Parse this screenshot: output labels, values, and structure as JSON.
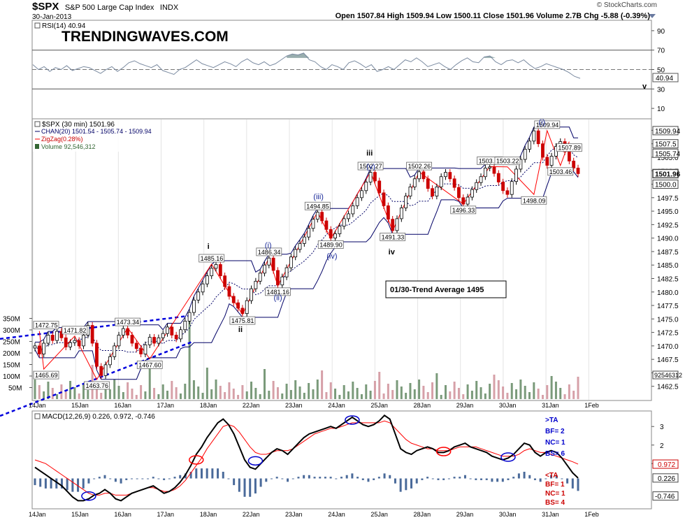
{
  "header": {
    "symbol": "$SPX",
    "name": "S&P 500 Large Cap Index",
    "exchange": "INDX",
    "date": "30-Jan-2013",
    "ohlc": "Open 1507.84  High 1509.94  Low 1500.11  Close 1501.96  Volume 2.7B  Chg -5.88 (-0.39%)",
    "credit": "© StockCharts.com"
  },
  "colors": {
    "up": "#000000",
    "down": "#cc0000",
    "channel": "#000066",
    "zigzag": "#ff0000",
    "volume": "#d6a0a8",
    "volume_up": "#7a9a7a",
    "macd": "#000000",
    "signal": "#ff0000",
    "hist": "#4a6a9a",
    "rsi": "#7a8aa0",
    "trend": "#0000dd"
  },
  "chart_data": [
    {
      "type": "line",
      "title": "RSI(14) 40.94",
      "watermark": "TRENDINGWAVES.COM",
      "ylim": [
        0,
        100
      ],
      "yticks": [
        10,
        30,
        50,
        70,
        90
      ],
      "levels": [
        30,
        50,
        70
      ],
      "last_label": "40.94",
      "corner_label": "v",
      "values": [
        55,
        50,
        53,
        48,
        52,
        50,
        54,
        49,
        51,
        53,
        52,
        49,
        46,
        50,
        53,
        48,
        52,
        57,
        59,
        56,
        54,
        52,
        55,
        49,
        47,
        45,
        50,
        52,
        56,
        60,
        56,
        54,
        52,
        55,
        58,
        56,
        53,
        58,
        61,
        57,
        55,
        58,
        54,
        56,
        60,
        64,
        66,
        65,
        67,
        60,
        58,
        53,
        50,
        55,
        53,
        50,
        57,
        59,
        56,
        52,
        55,
        48,
        50,
        53,
        50,
        55,
        60,
        58,
        62,
        58,
        53,
        55,
        57,
        53,
        50,
        55,
        59,
        62,
        58,
        57,
        63,
        64,
        58,
        55,
        59,
        60,
        57,
        60,
        55,
        51,
        53,
        56,
        54,
        52,
        50,
        47,
        43,
        40.94
      ]
    },
    {
      "type": "line",
      "title": "$SPX (30 min) 1501.96",
      "legend": [
        "CHAN(20) 1501.54 - 1505.74 - 1509.94",
        "ZigZag(0.28%)",
        "Volume 92,546,312"
      ],
      "ylim": [
        1460,
        1512
      ],
      "yticks": [
        1462.5,
        1465.0,
        1467.5,
        1470.0,
        1472.5,
        1475.0,
        1477.5,
        1480.0,
        1482.5,
        1485.0,
        1487.5,
        1490.0,
        1492.5,
        1495.0,
        1497.5,
        1500.0,
        1502.5,
        1505.0,
        1507.5,
        1510.0
      ],
      "x_ticks": [
        "14Jan",
        "15Jan",
        "16Jan",
        "17Jan",
        "18Jan",
        "22Jan",
        "23Jan",
        "24Jan",
        "25Jan",
        "28Jan",
        "29Jan",
        "30Jan",
        "31Jan",
        "1Feb"
      ],
      "volume_ticks": [
        "50M",
        "100M",
        "150M",
        "200M",
        "250M",
        "300M",
        "350M"
      ],
      "price_tags": [
        "1509.94",
        "1507.5",
        "1505.74",
        "1501.96",
        "1500.0"
      ],
      "volume_tag": "92546312",
      "close_path": [
        1470.0,
        1468.5,
        1470.5,
        1472.0,
        1471.0,
        1472.7,
        1471.5,
        1469.8,
        1470.6,
        1471.0,
        1470.0,
        1472.0,
        1473.8,
        1470.5,
        1466.2,
        1464.5,
        1466.5,
        1468.0,
        1470.0,
        1472.0,
        1473.2,
        1472.0,
        1470.5,
        1469.5,
        1468.5,
        1470.2,
        1471.6,
        1470.5,
        1471.5,
        1472.3,
        1473.5,
        1472.0,
        1471.3,
        1473.0,
        1474.6,
        1476.2,
        1478.5,
        1480.0,
        1481.5,
        1483.0,
        1484.4,
        1485.1,
        1483.0,
        1481.0,
        1479.2,
        1478.0,
        1477.0,
        1476.0,
        1478.4,
        1480.6,
        1482.0,
        1483.5,
        1485.0,
        1486.3,
        1484.0,
        1481.3,
        1482.8,
        1484.5,
        1486.5,
        1487.9,
        1489.0,
        1490.2,
        1491.8,
        1493.5,
        1494.8,
        1493.2,
        1491.6,
        1490.0,
        1490.8,
        1492.2,
        1493.6,
        1494.5,
        1496.0,
        1497.5,
        1498.8,
        1500.4,
        1502.2,
        1500.6,
        1498.4,
        1496.0,
        1493.5,
        1491.4,
        1493.6,
        1495.6,
        1497.8,
        1499.5,
        1501.0,
        1502.3,
        1501.0,
        1499.2,
        1497.8,
        1499.5,
        1501.4,
        1502.2,
        1501.0,
        1499.4,
        1497.5,
        1496.3,
        1497.6,
        1499.0,
        1500.3,
        1501.4,
        1503.0,
        1503.2,
        1502.0,
        1500.4,
        1498.8,
        1498.1,
        1500.5,
        1502.8,
        1504.6,
        1506.5,
        1508.0,
        1509.9,
        1507.5,
        1505.0,
        1503.5,
        1505.2,
        1507.0,
        1507.9,
        1506.0,
        1504.3,
        1503.0,
        1501.96
      ],
      "swing_points": [
        {
          "label": "1472.75",
          "value": 1472.75
        },
        {
          "label": "1465.69",
          "value": 1465.69
        },
        {
          "label": "1471.82",
          "value": 1471.82
        },
        {
          "label": "1463.76",
          "value": 1463.76
        },
        {
          "label": "1473.34",
          "value": 1473.34
        },
        {
          "label": "1467.60",
          "value": 1467.6
        },
        {
          "label": "1485.16",
          "value": 1485.16
        },
        {
          "label": "1475.81",
          "value": 1475.81
        },
        {
          "label": "1486.34",
          "value": 1486.34
        },
        {
          "label": "1481.16",
          "value": 1481.16
        },
        {
          "label": "1494.85",
          "value": 1494.85
        },
        {
          "label": "1489.90",
          "value": 1489.9
        },
        {
          "label": "1502.27",
          "value": 1502.27
        },
        {
          "label": "1491.33",
          "value": 1491.33
        },
        {
          "label": "1502.26",
          "value": 1502.26
        },
        {
          "label": "1503.26",
          "value": 1503.26
        },
        {
          "label": "1496.33",
          "value": 1496.33
        },
        {
          "label": "1503.22",
          "value": 1503.22
        },
        {
          "label": "1498.09",
          "value": 1498.09
        },
        {
          "label": "1509.94",
          "value": 1509.94
        },
        {
          "label": "1503.46",
          "value": 1503.46
        },
        {
          "label": "1507.89",
          "value": 1507.89
        }
      ],
      "wave_labels": [
        "i",
        "(i)",
        "(ii)",
        "ii",
        "(iii)",
        "(iv)",
        "iii",
        "(v)",
        "iv",
        "(i)"
      ],
      "annotation": "01/30-Trend Average 1495"
    },
    {
      "type": "line",
      "title": "MACD(12,26,9) 0.226, 0.972, -0.746",
      "ylim": [
        -1.4,
        3.8
      ],
      "yticks": [
        1,
        2,
        3
      ],
      "tags": [
        "0.972",
        "0.226",
        "-0.746"
      ],
      "macd": [
        0.8,
        0.6,
        0.4,
        0.2,
        0.0,
        -0.2,
        -0.5,
        -0.8,
        -1.0,
        -1.0,
        -0.9,
        -0.7,
        -0.6,
        -0.4,
        -0.6,
        -0.9,
        -1.0,
        -0.8,
        -0.6,
        -0.5,
        -0.4,
        -0.3,
        -0.2,
        -0.4,
        -0.6,
        -0.5,
        -0.3,
        0.0,
        0.4,
        0.9,
        1.5,
        1.9,
        2.4,
        2.8,
        3.2,
        3.4,
        3.1,
        2.6,
        1.9,
        1.2,
        0.8,
        0.7,
        1.0,
        1.3,
        1.6,
        1.8,
        1.7,
        1.5,
        1.8,
        2.1,
        2.4,
        2.6,
        2.7,
        2.8,
        2.9,
        3.0,
        2.9,
        3.1,
        3.3,
        3.5,
        3.3,
        3.1,
        3.0,
        3.1,
        3.3,
        3.6,
        3.4,
        2.6,
        1.8,
        1.6,
        1.5,
        1.7,
        1.8,
        1.9,
        1.8,
        1.6,
        1.6,
        1.7,
        1.9,
        2.0,
        2.1,
        1.9,
        1.8,
        1.7,
        1.6,
        1.4,
        1.3,
        1.2,
        1.3,
        1.5,
        1.8,
        2.1,
        2.0,
        1.6,
        1.4,
        1.6,
        1.7,
        1.6,
        1.3,
        0.9,
        0.5,
        0.226
      ],
      "signal": [
        1.2,
        1.1,
        1.0,
        0.8,
        0.6,
        0.4,
        0.2,
        0.0,
        -0.2,
        -0.4,
        -0.6,
        -0.7,
        -0.7,
        -0.6,
        -0.6,
        -0.7,
        -0.7,
        -0.7,
        -0.6,
        -0.5,
        -0.4,
        -0.3,
        -0.3,
        -0.4,
        -0.5,
        -0.5,
        -0.4,
        -0.2,
        0.1,
        0.5,
        0.9,
        1.3,
        1.8,
        2.2,
        2.6,
        3.0,
        3.1,
        3.0,
        2.7,
        2.3,
        1.9,
        1.6,
        1.5,
        1.5,
        1.6,
        1.7,
        1.7,
        1.7,
        1.8,
        2.0,
        2.2,
        2.4,
        2.6,
        2.7,
        2.8,
        2.9,
        2.9,
        3.0,
        3.1,
        3.2,
        3.2,
        3.2,
        3.2,
        3.2,
        3.2,
        3.3,
        3.2,
        2.9,
        2.6,
        2.3,
        2.1,
        2.0,
        1.9,
        1.8,
        1.8,
        1.7,
        1.7,
        1.7,
        1.8,
        1.9,
        1.9,
        1.9,
        1.9,
        1.8,
        1.7,
        1.6,
        1.5,
        1.4,
        1.4,
        1.4,
        1.5,
        1.7,
        1.8,
        1.7,
        1.6,
        1.6,
        1.5,
        1.4,
        1.3,
        1.2,
        1.1,
        0.972
      ],
      "histogram": [
        -0.4,
        -0.5,
        -0.6,
        -0.6,
        -0.6,
        -0.6,
        -0.7,
        -0.8,
        -0.8,
        -0.6,
        -0.3,
        0.0,
        0.1,
        0.2,
        0.0,
        -0.2,
        -0.3,
        -0.1,
        0.0,
        0.0,
        0.0,
        0.0,
        0.1,
        0.0,
        -0.1,
        0.0,
        0.1,
        0.2,
        0.3,
        0.4,
        0.6,
        0.6,
        0.6,
        0.6,
        0.6,
        0.4,
        0.0,
        -0.4,
        -0.8,
        -1.1,
        -1.1,
        -0.9,
        -0.5,
        -0.2,
        0.0,
        0.1,
        0.0,
        -0.2,
        0.0,
        0.1,
        0.2,
        0.2,
        0.1,
        0.1,
        0.1,
        0.1,
        0.0,
        0.1,
        0.2,
        0.3,
        0.1,
        -0.1,
        -0.2,
        -0.1,
        0.1,
        0.3,
        0.2,
        -0.3,
        -0.8,
        -0.7,
        -0.6,
        -0.3,
        -0.1,
        0.1,
        0.0,
        -0.1,
        -0.1,
        0.0,
        0.1,
        0.1,
        0.2,
        0.0,
        -0.1,
        -0.1,
        -0.1,
        -0.2,
        -0.2,
        -0.2,
        -0.1,
        0.1,
        0.3,
        0.4,
        0.2,
        -0.1,
        -0.2,
        0.0,
        0.2,
        0.2,
        0.0,
        -0.3,
        -0.6,
        -0.746
      ],
      "cross_markers": [
        "up",
        "down",
        "up",
        "up",
        "down",
        "up"
      ],
      "side_notes": {
        "top": [
          ">TA",
          "BF= 2",
          "NC= 1",
          "BS= 6"
        ],
        "bottom": [
          "<TA",
          "BF= 1",
          "NC= 1",
          "BS= 4"
        ]
      }
    }
  ]
}
